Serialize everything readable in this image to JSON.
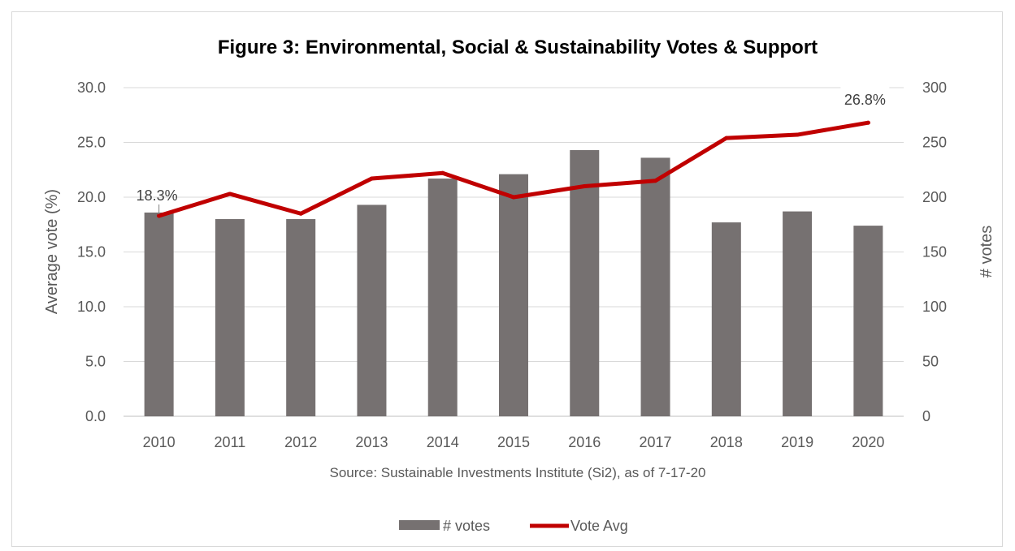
{
  "chart_data": {
    "type": "bar",
    "title": "Figure 3: Environmental, Social & Sustainability Votes & Support",
    "source": "Source:  Sustainable Investments Institute (Si2), as of 7-17-20",
    "ylabel_left": "Average vote (%)",
    "ylabel_right": "# votes",
    "categories": [
      "2010",
      "2011",
      "2012",
      "2013",
      "2014",
      "2015",
      "2016",
      "2017",
      "2018",
      "2019",
      "2020"
    ],
    "left_axis": {
      "min": 0,
      "max": 30,
      "ticks": [
        "0.0",
        "5.0",
        "10.0",
        "15.0",
        "20.0",
        "25.0",
        "30.0"
      ]
    },
    "right_axis": {
      "min": 0,
      "max": 300,
      "ticks": [
        "0",
        "50",
        "100",
        "150",
        "200",
        "250",
        "300"
      ]
    },
    "grid": true,
    "legend_position": "bottom",
    "series": [
      {
        "name": "# votes",
        "type": "bar",
        "axis": "right",
        "color": "#767171",
        "values": [
          186,
          180,
          180,
          193,
          217,
          221,
          243,
          236,
          177,
          187,
          174
        ]
      },
      {
        "name": "Vote Avg",
        "type": "line",
        "axis": "left",
        "color": "#C00000",
        "values": [
          18.3,
          20.3,
          18.5,
          21.7,
          22.2,
          20.0,
          21.0,
          21.5,
          25.4,
          25.7,
          26.8
        ]
      }
    ],
    "annotations": [
      {
        "category": "2010",
        "text": "18.3%"
      },
      {
        "category": "2020",
        "text": "26.8%"
      }
    ]
  }
}
